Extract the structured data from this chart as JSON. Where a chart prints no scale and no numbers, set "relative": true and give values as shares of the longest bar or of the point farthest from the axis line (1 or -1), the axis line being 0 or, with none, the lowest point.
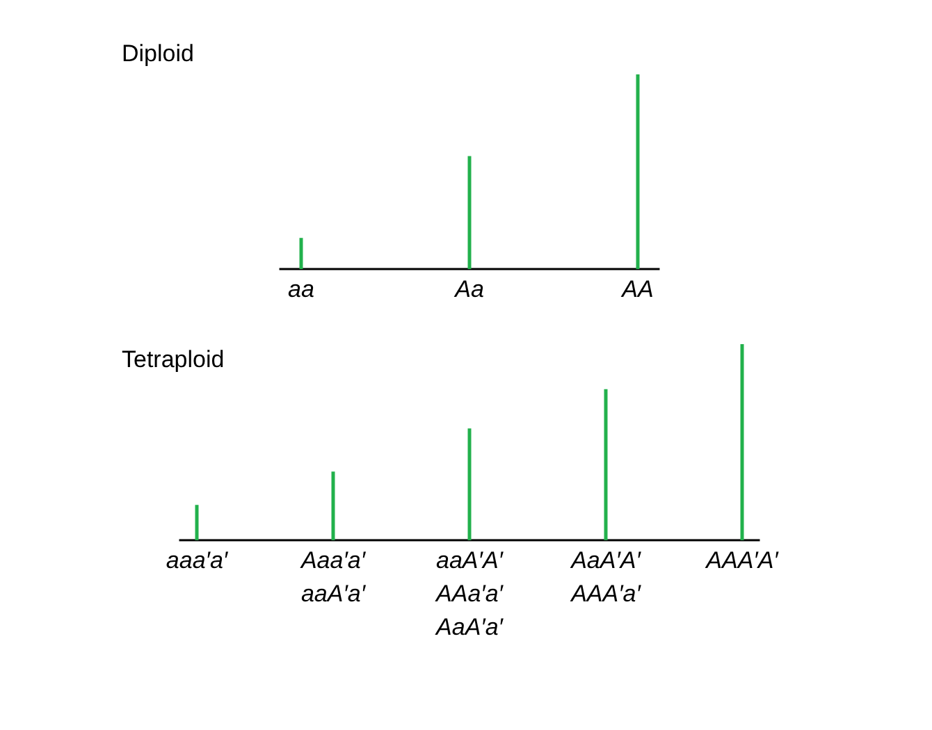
{
  "chart_data": [
    {
      "type": "bar",
      "title": "Diploid",
      "categories": [
        "aa",
        "Aa",
        "AA"
      ],
      "values": [
        0.16,
        0.58,
        1
      ],
      "relative": true,
      "color": "#22b14c"
    },
    {
      "type": "bar",
      "title": "Tetraploid",
      "categories": [
        "aaa′a′",
        "Aaa′a′\naaA′a′",
        "aaA′A′\nAAa′a′\nAaA′a′",
        "AaA′A′\nAAA′a′",
        "AAA′A′"
      ],
      "values": [
        0.18,
        0.35,
        0.57,
        0.77,
        1
      ],
      "relative": true,
      "color": "#22b14c"
    }
  ]
}
